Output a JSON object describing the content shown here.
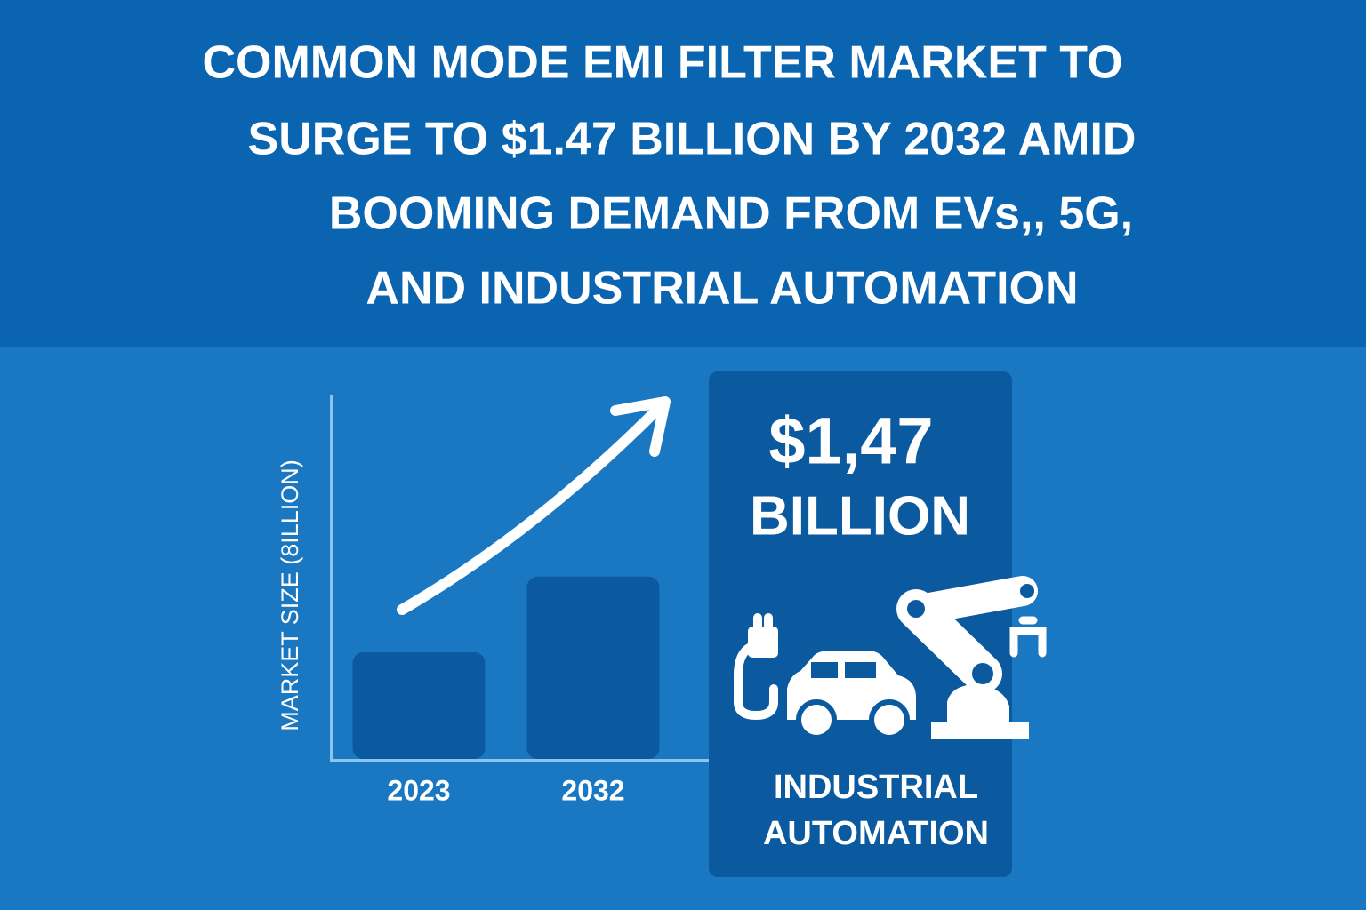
{
  "header": {
    "title_lines": [
      "COMMON MODE EMI FILTER MARKET TO",
      "SURGE TO $1.47 BILLION BY 2032 AMID",
      "BOOMING DEMAND FROM EVs,, 5G,",
      "AND INDUSTRIAL AUTOMATION"
    ]
  },
  "chart_data": {
    "type": "bar",
    "y_label": "MARKET SIZE (8ILLION)",
    "categories": [
      "2023",
      "2032"
    ],
    "values": [
      0.86,
      1.47
    ],
    "color": "#0b5aa0",
    "ylim": [
      0,
      2.93
    ]
  },
  "callout": {
    "amount": "$1,47",
    "unit": "BILLION",
    "caption_lines": [
      "INDUSTRIAL",
      "AUTOMATION"
    ]
  }
}
